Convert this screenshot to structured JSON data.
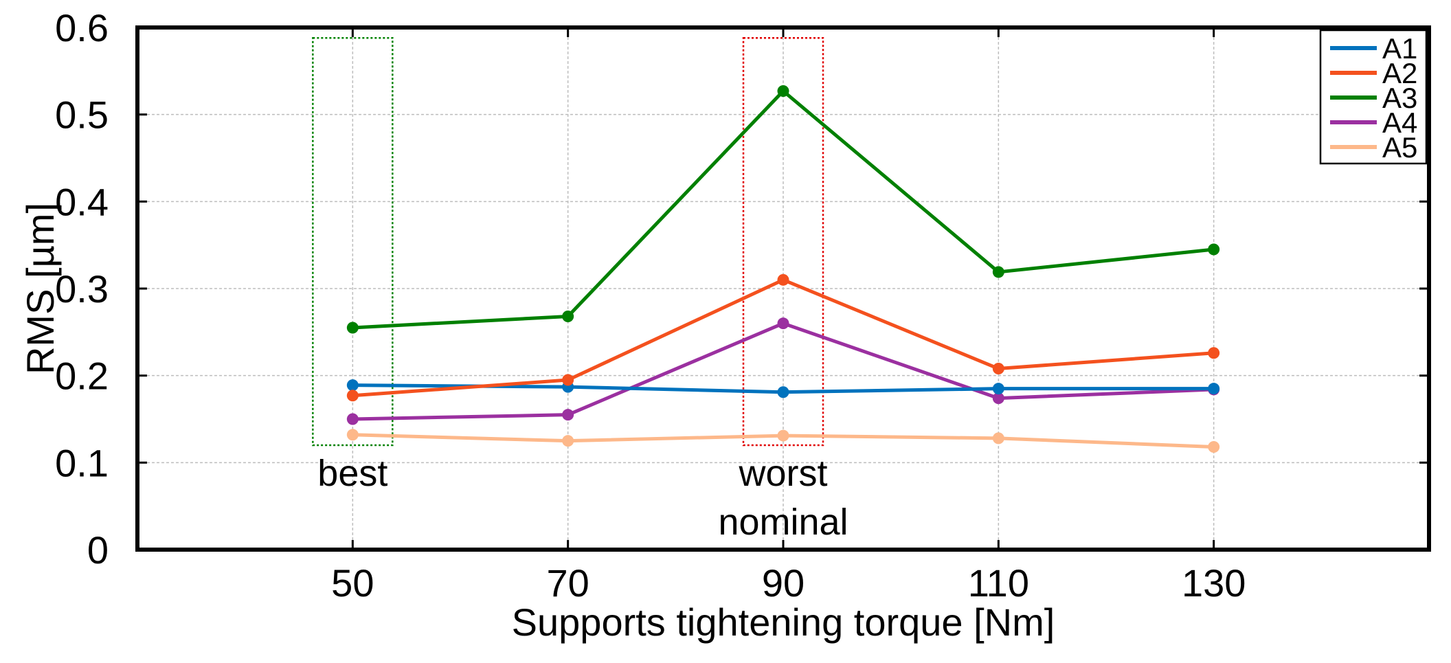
{
  "chart_data": {
    "type": "line",
    "xlabel": "Supports tightening torque [Nm]",
    "ylabel": "RMS [µm]",
    "x": [
      50,
      70,
      90,
      110,
      130
    ],
    "xlim": [
      30,
      150
    ],
    "ylim": [
      0,
      0.6
    ],
    "x_ticks": [
      "50",
      "70",
      "90",
      "110",
      "130"
    ],
    "y_ticks": [
      "0",
      "0.1",
      "0.2",
      "0.3",
      "0.4",
      "0.5",
      "0.6"
    ],
    "y_tick_values": [
      0,
      0.1,
      0.2,
      0.3,
      0.4,
      0.5,
      0.6
    ],
    "grid": true,
    "legend_position": "top-right",
    "series": [
      {
        "name": "A1",
        "color": "#0072BD",
        "values": [
          0.189,
          0.187,
          0.181,
          0.185,
          0.185
        ]
      },
      {
        "name": "A2",
        "color": "#F4511E",
        "values": [
          0.177,
          0.195,
          0.31,
          0.208,
          0.226
        ]
      },
      {
        "name": "A3",
        "color": "#008000",
        "values": [
          0.255,
          0.268,
          0.527,
          0.319,
          0.345
        ]
      },
      {
        "name": "A4",
        "color": "#9B30A0",
        "values": [
          0.15,
          0.155,
          0.26,
          0.174,
          0.184
        ]
      },
      {
        "name": "A5",
        "color": "#FDB88A",
        "values": [
          0.132,
          0.125,
          0.131,
          0.128,
          0.118
        ]
      }
    ],
    "annotations": [
      {
        "id": "best",
        "label": "best",
        "color": "#008000",
        "x_center": 50,
        "y_range": [
          0.12,
          0.588
        ]
      },
      {
        "id": "worst",
        "label": "worst",
        "sublabel": "nominal",
        "color": "#E00000",
        "x_center": 90,
        "y_range": [
          0.12,
          0.588
        ]
      }
    ]
  }
}
